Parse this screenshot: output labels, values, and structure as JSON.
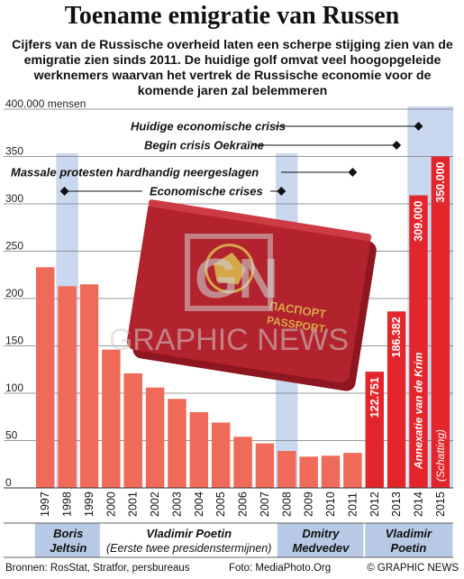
{
  "title": "Toename emigratie van Russen",
  "subtitle": "Cijfers van de Russische overheid laten een scherpe stijging zien van de emigratie zien sinds 2011. De huidige golf omvat veel hoogopgeleide werknemers waarvan het vertrek de Russische economie voor de komende jaren zal belemmeren",
  "colors": {
    "bar_light": "#f06a5a",
    "bar_bright": "#e3262c",
    "crisis_band": "#c9d8ee",
    "leader_band": "#b7c9e4"
  },
  "watermark": "GRAPHIC NEWS",
  "watermark_logo": "GN",
  "photo": "passport-icon",
  "footer": {
    "sources": "Bronnen: RosStat, Stratfor, persbureaus",
    "photo_credit": "Foto: MediaPhoto.Org",
    "copyright": "© GRAPHIC NEWS"
  },
  "leaders": [
    {
      "first": "Boris",
      "last": "Jeltsin",
      "note": "",
      "from": "1997",
      "to": "1999"
    },
    {
      "first": "Vladimir Poetin",
      "last": "",
      "note": "(Eerste twee presidenstermijnen)",
      "from": "2000",
      "to": "2007"
    },
    {
      "first": "Dmitry",
      "last": "Medvedev",
      "note": "",
      "from": "2008",
      "to": "2011"
    },
    {
      "first": "Vladimir",
      "last": "Poetin",
      "note": "",
      "from": "2012",
      "to": "2015"
    }
  ],
  "annotations": [
    {
      "label": "Huidige economische crisis",
      "year": "2014"
    },
    {
      "label": "Begin crisis Oekraïne",
      "year": "2013"
    },
    {
      "label": "Massale protesten hardhandig neergeslagen",
      "year": "2011"
    },
    {
      "label": "Economische crises",
      "years": [
        "1998",
        "2008"
      ]
    }
  ],
  "chart_data": {
    "type": "bar",
    "title": "Toename emigratie van Russen",
    "ylabel": "mensen",
    "y_ticks": [
      "400.000 mensen",
      "350",
      "300",
      "250",
      "200",
      "150",
      "100",
      "50",
      "0"
    ],
    "ylim": [
      0,
      400000
    ],
    "grid": true,
    "categories": [
      "1997",
      "1998",
      "1999",
      "2000",
      "2001",
      "2002",
      "2003",
      "2004",
      "2005",
      "2006",
      "2007",
      "2008",
      "2009",
      "2010",
      "2011",
      "2012",
      "2013",
      "2014",
      "2015"
    ],
    "values": [
      233000,
      213000,
      215000,
      146000,
      121000,
      106000,
      94000,
      80000,
      69000,
      54000,
      47000,
      39000,
      33000,
      34000,
      37000,
      122751,
      186382,
      309000,
      350000
    ],
    "data_labels": [
      "",
      "",
      "",
      "",
      "",
      "",
      "",
      "",
      "",
      "",
      "",
      "",
      "",
      "",
      "",
      "122.751",
      "186.382",
      "309.000",
      "350.000"
    ],
    "bar_notes": {
      "2014": "Annexatie van de Krim",
      "2015": "(Schatting)"
    },
    "crisis_bands": [
      "1998",
      "2008",
      "2014"
    ]
  }
}
